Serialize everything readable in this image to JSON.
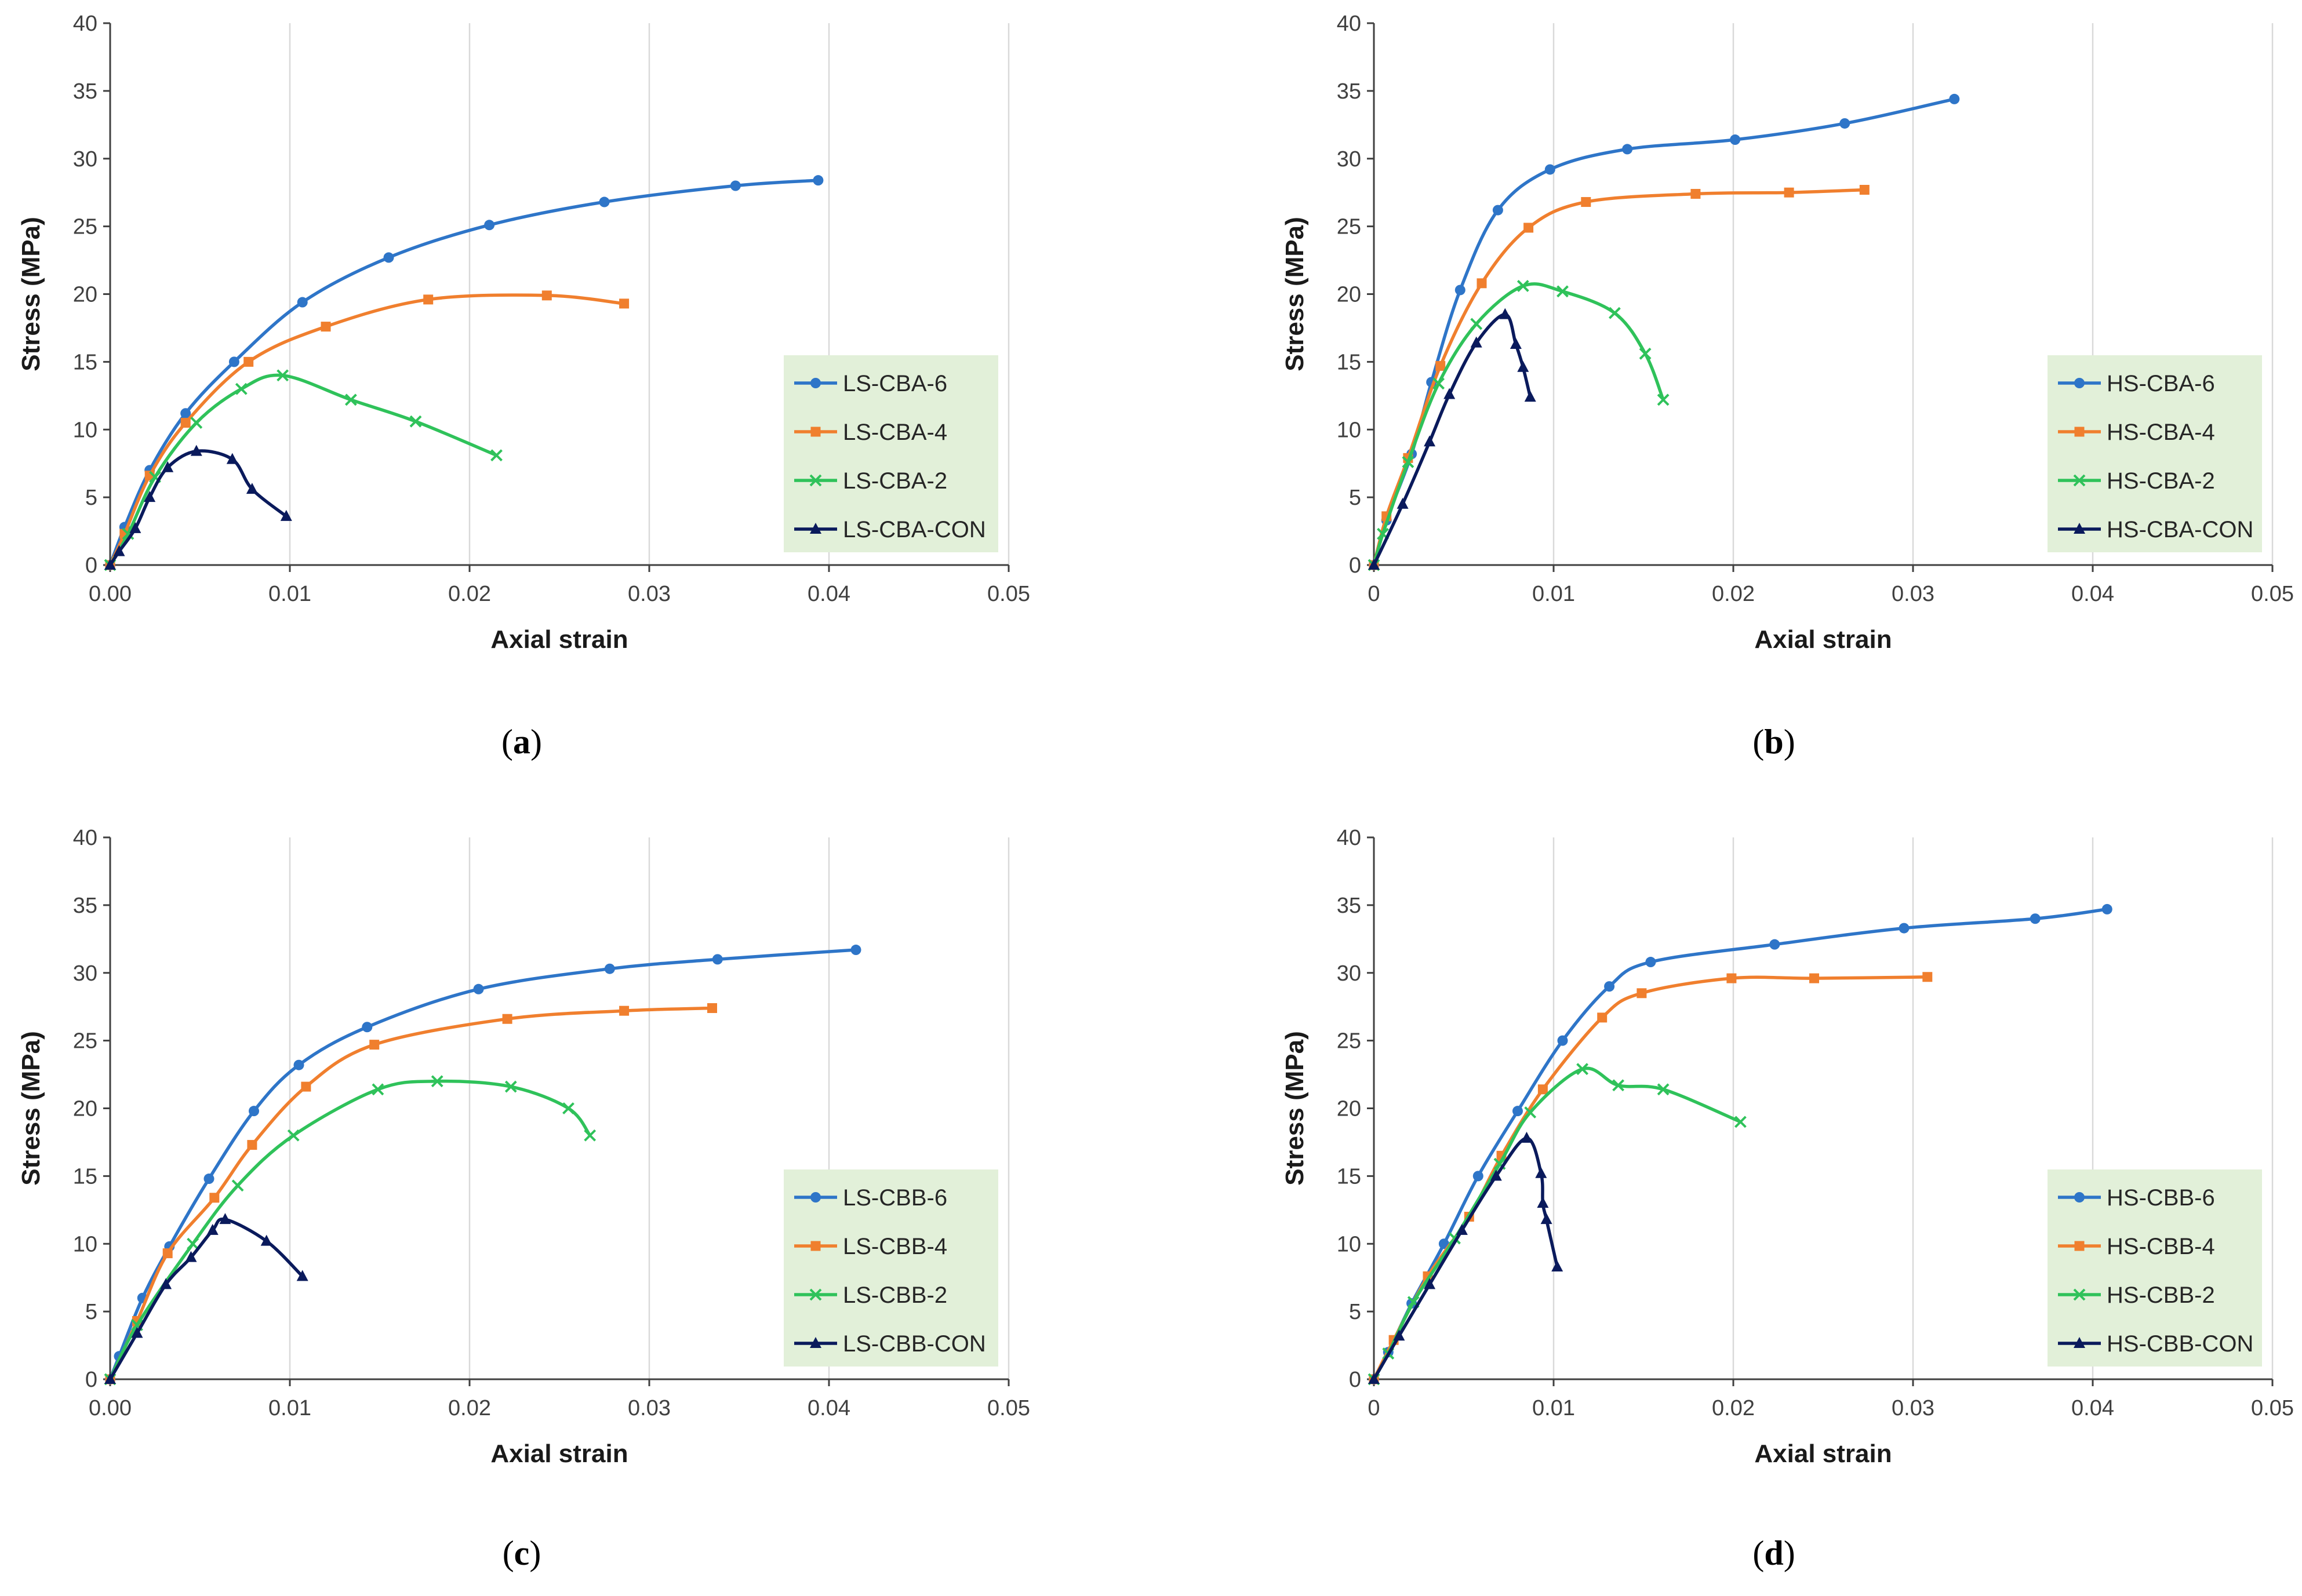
{
  "chart_data": [
    {
      "type": "line",
      "caption_letter": "a",
      "xlabel": "Axial strain",
      "ylabel": "Stress (MPa)",
      "xlim": [
        0,
        0.05
      ],
      "ylim": [
        0,
        40
      ],
      "xticks": [
        "0.00",
        "0.01",
        "0.02",
        "0.03",
        "0.04",
        "0.05"
      ],
      "yticks": [
        "0",
        "5",
        "10",
        "15",
        "20",
        "25",
        "30",
        "35",
        "40"
      ],
      "grid": "vertical",
      "legend_position": "bottom-right",
      "series": [
        {
          "name": "LS-CBA-6",
          "color": "#2e75c8",
          "marker": "circle",
          "x": [
            0,
            0.0008,
            0.0022,
            0.0042,
            0.0069,
            0.0107,
            0.0155,
            0.0211,
            0.0275,
            0.0348,
            0.0394
          ],
          "y": [
            0,
            2.8,
            7.0,
            11.2,
            15.0,
            19.4,
            22.7,
            25.1,
            26.8,
            28.0,
            28.4
          ]
        },
        {
          "name": "LS-CBA-4",
          "color": "#f07f2e",
          "marker": "square",
          "x": [
            0,
            0.0008,
            0.0022,
            0.0042,
            0.0077,
            0.012,
            0.0177,
            0.0243,
            0.0286
          ],
          "y": [
            0,
            2.3,
            6.6,
            10.5,
            15.0,
            17.6,
            19.6,
            19.9,
            19.3
          ]
        },
        {
          "name": "LS-CBA-2",
          "color": "#2fc25a",
          "marker": "cross",
          "x": [
            0,
            0.001,
            0.0025,
            0.0048,
            0.0073,
            0.0096,
            0.0134,
            0.017,
            0.0215
          ],
          "y": [
            0,
            2.3,
            6.5,
            10.5,
            13.0,
            14.0,
            12.2,
            10.6,
            8.1
          ]
        },
        {
          "name": "LS-CBA-CON",
          "color": "#0a1a5c",
          "marker": "triangle",
          "x": [
            0,
            0.0005,
            0.0014,
            0.0022,
            0.0032,
            0.0048,
            0.0068,
            0.0079,
            0.0098
          ],
          "y": [
            0,
            1.0,
            2.7,
            5.0,
            7.2,
            8.4,
            7.8,
            5.6,
            3.6
          ]
        }
      ]
    },
    {
      "type": "line",
      "caption_letter": "b",
      "xlabel": "Axial strain",
      "ylabel": "Stress (MPa)",
      "xlim": [
        0,
        0.05
      ],
      "ylim": [
        0,
        40
      ],
      "xticks": [
        "0",
        "0.01",
        "0.02",
        "0.03",
        "0.04",
        "0.05"
      ],
      "yticks": [
        "0",
        "5",
        "10",
        "15",
        "20",
        "25",
        "30",
        "35",
        "40"
      ],
      "grid": "vertical",
      "legend_position": "bottom-right",
      "series": [
        {
          "name": "HS-CBA-6",
          "color": "#2e75c8",
          "marker": "circle",
          "x": [
            0,
            0.0007,
            0.0021,
            0.0032,
            0.0048,
            0.0069,
            0.0098,
            0.0141,
            0.0201,
            0.0262,
            0.0323
          ],
          "y": [
            0,
            3.3,
            8.2,
            13.5,
            20.3,
            26.2,
            29.2,
            30.7,
            31.4,
            32.6,
            34.4
          ]
        },
        {
          "name": "HS-CBA-4",
          "color": "#f07f2e",
          "marker": "square",
          "x": [
            0,
            0.0007,
            0.0019,
            0.0037,
            0.006,
            0.0086,
            0.0118,
            0.0179,
            0.0231,
            0.0273
          ],
          "y": [
            0,
            3.6,
            7.9,
            14.7,
            20.8,
            24.9,
            26.8,
            27.4,
            27.5,
            27.7
          ]
        },
        {
          "name": "HS-CBA-2",
          "color": "#2fc25a",
          "marker": "cross",
          "x": [
            0,
            0.0005,
            0.0019,
            0.0036,
            0.0057,
            0.0083,
            0.0105,
            0.0134,
            0.0151,
            0.0161
          ],
          "y": [
            0,
            2.3,
            7.6,
            13.4,
            17.8,
            20.6,
            20.2,
            18.6,
            15.6,
            12.2
          ]
        },
        {
          "name": "HS-CBA-CON",
          "color": "#0a1a5c",
          "marker": "triangle",
          "x": [
            0,
            0.0016,
            0.0031,
            0.0042,
            0.0057,
            0.0073,
            0.0079,
            0.0083,
            0.0087
          ],
          "y": [
            0,
            4.5,
            9.1,
            12.6,
            16.4,
            18.5,
            16.3,
            14.6,
            12.4
          ]
        }
      ]
    },
    {
      "type": "line",
      "caption_letter": "c",
      "xlabel": "Axial strain",
      "ylabel": "Stress (MPa)",
      "xlim": [
        0,
        0.05
      ],
      "ylim": [
        0,
        40
      ],
      "xticks": [
        "0.00",
        "0.01",
        "0.02",
        "0.03",
        "0.04",
        "0.05"
      ],
      "yticks": [
        "0",
        "5",
        "10",
        "15",
        "20",
        "25",
        "30",
        "35",
        "40"
      ],
      "grid": "vertical",
      "legend_position": "bottom-right",
      "series": [
        {
          "name": "LS-CBB-6",
          "color": "#2e75c8",
          "marker": "circle",
          "x": [
            0,
            0.0005,
            0.0018,
            0.0033,
            0.0055,
            0.008,
            0.0105,
            0.0143,
            0.0205,
            0.0278,
            0.0338,
            0.0415
          ],
          "y": [
            0,
            1.7,
            6.0,
            9.8,
            14.8,
            19.8,
            23.2,
            26.0,
            28.8,
            30.3,
            31.0,
            31.7
          ]
        },
        {
          "name": "LS-CBB-4",
          "color": "#f07f2e",
          "marker": "square",
          "x": [
            0,
            0.0015,
            0.0032,
            0.0058,
            0.0079,
            0.0109,
            0.0147,
            0.0221,
            0.0286,
            0.0335
          ],
          "y": [
            0,
            4.3,
            9.3,
            13.4,
            17.3,
            21.6,
            24.7,
            26.6,
            27.2,
            27.4
          ]
        },
        {
          "name": "LS-CBB-2",
          "color": "#2fc25a",
          "marker": "cross",
          "x": [
            0,
            0.0015,
            0.0046,
            0.0071,
            0.0102,
            0.0149,
            0.0182,
            0.0223,
            0.0255,
            0.0267
          ],
          "y": [
            0,
            4.0,
            10.0,
            14.3,
            18.0,
            21.4,
            22.0,
            21.6,
            20.0,
            18.0
          ]
        },
        {
          "name": "LS-CBB-CON",
          "color": "#0a1a5c",
          "marker": "triangle",
          "x": [
            0,
            0.0015,
            0.0031,
            0.0045,
            0.0057,
            0.0064,
            0.0087,
            0.0107
          ],
          "y": [
            0,
            3.4,
            7.0,
            9.0,
            11.0,
            11.8,
            10.2,
            7.6
          ]
        }
      ]
    },
    {
      "type": "line",
      "caption_letter": "d",
      "xlabel": "Axial strain",
      "ylabel": "Stress (MPa)",
      "xlim": [
        0,
        0.05
      ],
      "ylim": [
        0,
        40
      ],
      "xticks": [
        "0",
        "0.01",
        "0.02",
        "0.03",
        "0.04",
        "0.05"
      ],
      "yticks": [
        "0",
        "5",
        "10",
        "15",
        "20",
        "25",
        "30",
        "35",
        "40"
      ],
      "grid": "vertical",
      "legend_position": "bottom-right",
      "series": [
        {
          "name": "HS-CBB-6",
          "color": "#2e75c8",
          "marker": "circle",
          "x": [
            0,
            0.0008,
            0.0021,
            0.0039,
            0.0058,
            0.008,
            0.0105,
            0.0131,
            0.0154,
            0.0223,
            0.0295,
            0.0368,
            0.0408
          ],
          "y": [
            0,
            2.0,
            5.6,
            10.0,
            15.0,
            19.8,
            25.0,
            29.0,
            30.8,
            32.1,
            33.3,
            34.0,
            34.7
          ]
        },
        {
          "name": "HS-CBB-4",
          "color": "#f07f2e",
          "marker": "square",
          "x": [
            0,
            0.0011,
            0.003,
            0.0053,
            0.0071,
            0.0094,
            0.0127,
            0.0149,
            0.0199,
            0.0245,
            0.0308
          ],
          "y": [
            0,
            2.9,
            7.6,
            12.0,
            16.5,
            21.4,
            26.7,
            28.5,
            29.6,
            29.6,
            29.7
          ]
        },
        {
          "name": "HS-CBB-2",
          "color": "#2fc25a",
          "marker": "cross",
          "x": [
            0,
            0.0008,
            0.0022,
            0.0045,
            0.007,
            0.0087,
            0.0116,
            0.0136,
            0.0161,
            0.0204
          ],
          "y": [
            0,
            1.9,
            5.7,
            10.4,
            15.9,
            19.7,
            22.9,
            21.7,
            21.4,
            19.0
          ]
        },
        {
          "name": "HS-CBB-CON",
          "color": "#0a1a5c",
          "marker": "triangle",
          "x": [
            0,
            0.0014,
            0.0031,
            0.0049,
            0.0068,
            0.0085,
            0.0093,
            0.0094,
            0.0096,
            0.0102
          ],
          "y": [
            0,
            3.2,
            7.0,
            11.0,
            15.0,
            17.8,
            15.2,
            13.0,
            11.8,
            8.3
          ]
        }
      ]
    }
  ]
}
